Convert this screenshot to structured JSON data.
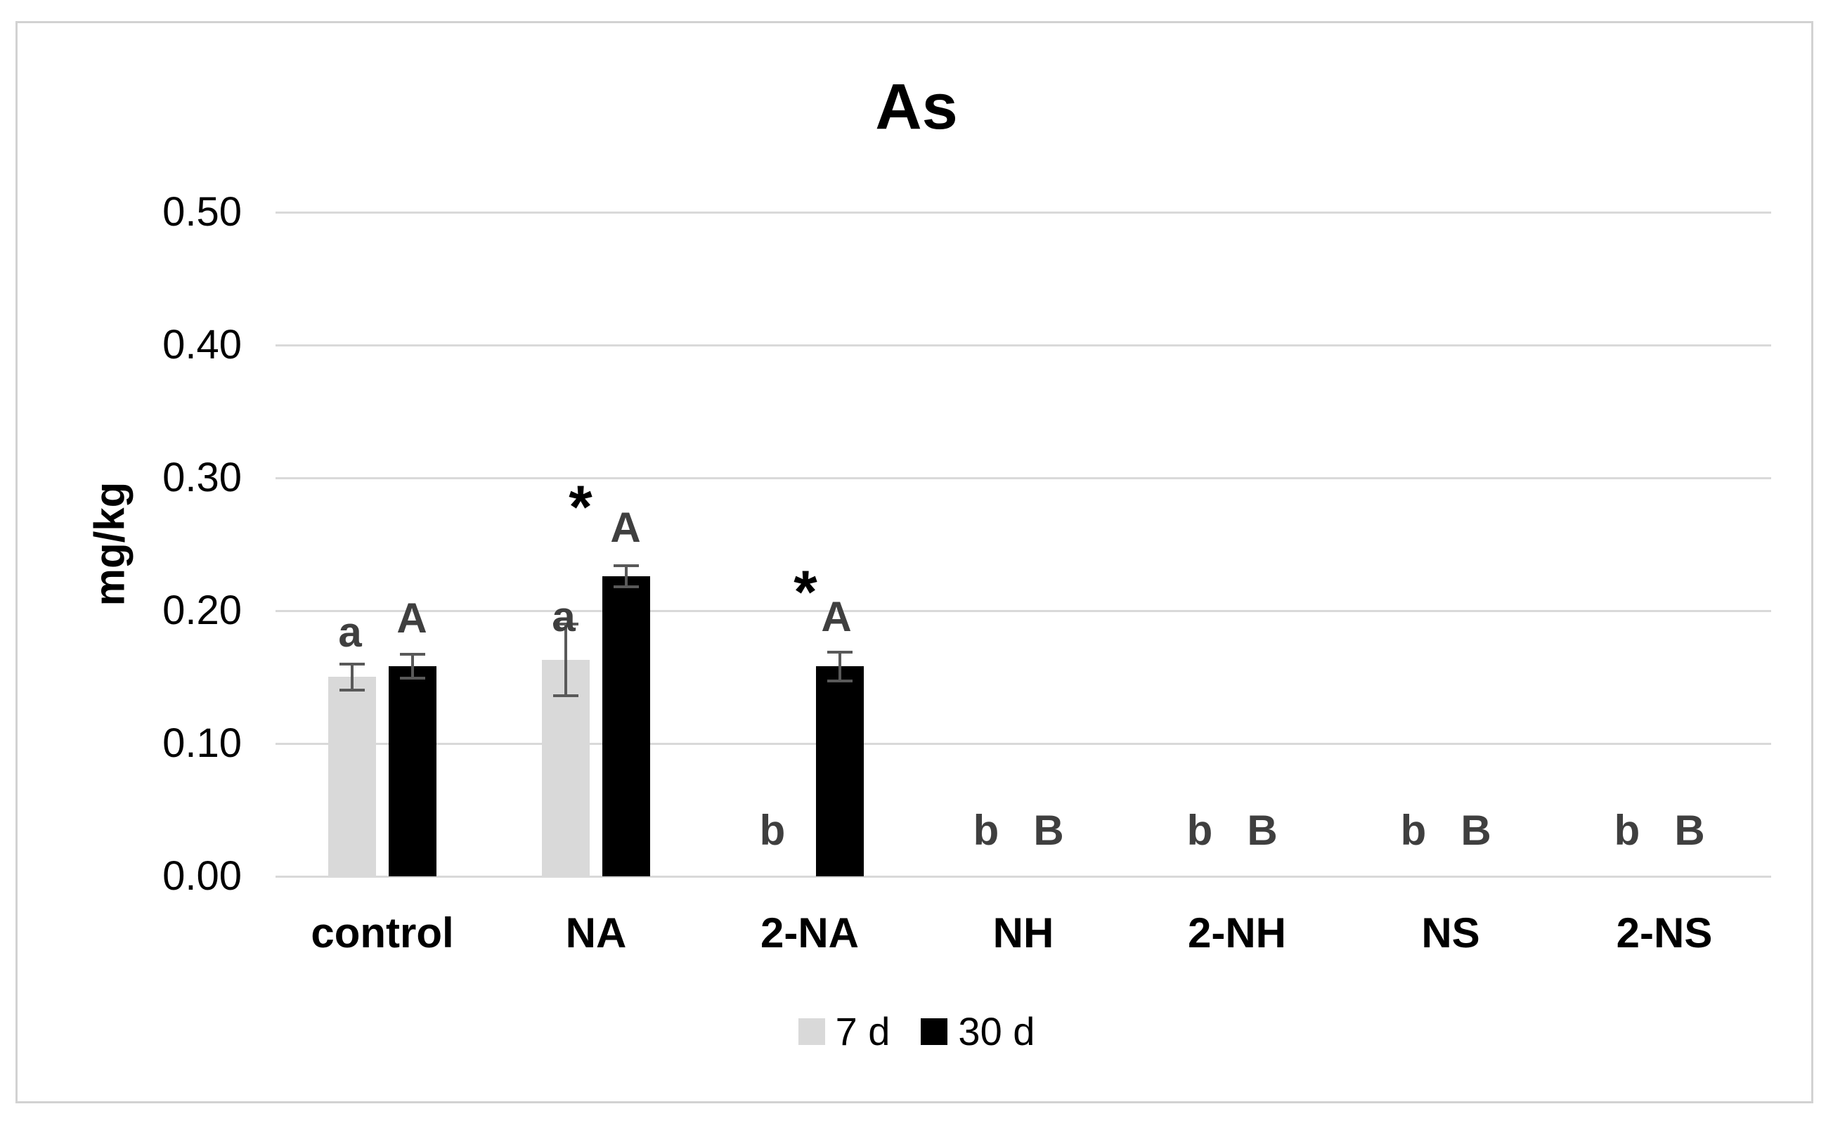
{
  "title": "As",
  "chart_data": {
    "type": "bar",
    "title": "As",
    "xlabel": "",
    "ylabel": "mg/kg",
    "ylim": [
      0,
      0.5
    ],
    "ytick_step": 0.1,
    "ytick_labels": [
      "0.00",
      "0.10",
      "0.20",
      "0.30",
      "0.40",
      "0.50"
    ],
    "grid": true,
    "legend_position": "bottom-center",
    "categories": [
      "control",
      "NA",
      "2-NA",
      "NH",
      "2-NH",
      "NS",
      "2-NS"
    ],
    "series": [
      {
        "name": "7 d",
        "color": "#d9d9d9",
        "values": [
          0.15,
          0.163,
          0,
          0,
          0,
          0,
          0
        ],
        "errors": [
          0.011,
          0.028,
          0,
          0,
          0,
          0,
          0
        ]
      },
      {
        "name": "30 d",
        "color": "#000000",
        "values": [
          0.158,
          0.226,
          0.158,
          0,
          0,
          0,
          0
        ],
        "errors": [
          0.01,
          0.009,
          0.012,
          0,
          0,
          0,
          0
        ]
      }
    ],
    "annotations": [
      {
        "category": "control",
        "text": "a",
        "dx": -46,
        "v": 0.185,
        "style": "letter"
      },
      {
        "category": "control",
        "text": "A",
        "dx": 42,
        "v": 0.196,
        "style": "letter"
      },
      {
        "category": "NA",
        "text": "a",
        "dx": -46,
        "v": 0.197,
        "style": "letter"
      },
      {
        "category": "NA",
        "text": "*",
        "dx": -22,
        "v": 0.286,
        "style": "star"
      },
      {
        "category": "NA",
        "text": "A",
        "dx": 42,
        "v": 0.264,
        "style": "letter"
      },
      {
        "category": "2-NA",
        "text": "b",
        "dx": -53,
        "v": 0.036,
        "style": "letter"
      },
      {
        "category": "2-NA",
        "text": "*",
        "dx": -6,
        "v": 0.222,
        "style": "star"
      },
      {
        "category": "2-NA",
        "text": "A",
        "dx": 38,
        "v": 0.197,
        "style": "letter"
      },
      {
        "category": "NH",
        "text": "b",
        "dx": -53,
        "v": 0.036,
        "style": "letter"
      },
      {
        "category": "NH",
        "text": "B",
        "dx": 36,
        "v": 0.036,
        "style": "letter"
      },
      {
        "category": "2-NH",
        "text": "b",
        "dx": -53,
        "v": 0.036,
        "style": "letter"
      },
      {
        "category": "2-NH",
        "text": "B",
        "dx": 36,
        "v": 0.036,
        "style": "letter"
      },
      {
        "category": "NS",
        "text": "b",
        "dx": -53,
        "v": 0.036,
        "style": "letter"
      },
      {
        "category": "NS",
        "text": "B",
        "dx": 36,
        "v": 0.036,
        "style": "letter"
      },
      {
        "category": "2-NS",
        "text": "b",
        "dx": -53,
        "v": 0.036,
        "style": "letter"
      },
      {
        "category": "2-NS",
        "text": "B",
        "dx": 36,
        "v": 0.036,
        "style": "letter"
      }
    ]
  },
  "colors": {
    "bar_7d": "#d9d9d9",
    "bar_30d": "#000000",
    "error_bar": "#595959",
    "gridline": "#d9d9d9",
    "letter": "#3f3f3f",
    "asterisk": "#000000",
    "axis_text": "#000000",
    "frame_border": "#d2d2d2"
  }
}
